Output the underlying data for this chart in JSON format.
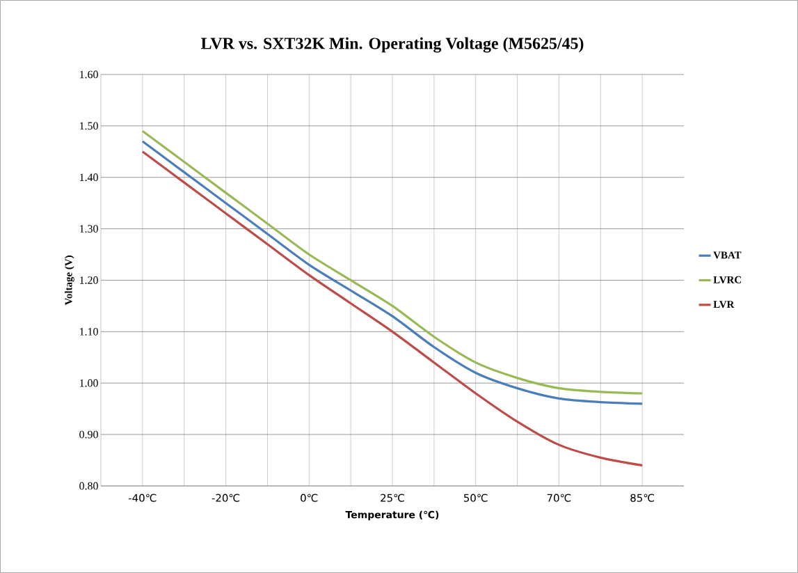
{
  "chart_data": {
    "type": "line",
    "title": "LVR vs. SXT32K Min. Operating Voltage  (M5625/45)",
    "xlabel": "Temperature (℃)",
    "ylabel": "Voltage (V)",
    "categories": [
      "-40℃",
      null,
      "-20℃",
      null,
      "0℃",
      null,
      "25℃",
      null,
      "50℃",
      null,
      "70℃",
      null,
      "85℃"
    ],
    "series": [
      {
        "name": "VBAT",
        "color": "#4a7ebb",
        "values": [
          1.47,
          1.41,
          1.35,
          1.29,
          1.23,
          1.18,
          1.13,
          1.07,
          1.02,
          0.99,
          0.97,
          0.963,
          0.96
        ]
      },
      {
        "name": "LVRC",
        "color": "#98b954",
        "values": [
          1.49,
          1.43,
          1.37,
          1.31,
          1.25,
          1.2,
          1.15,
          1.09,
          1.04,
          1.01,
          0.99,
          0.983,
          0.98
        ]
      },
      {
        "name": "LVR",
        "color": "#be4b48",
        "values": [
          1.45,
          1.39,
          1.33,
          1.27,
          1.21,
          1.155,
          1.1,
          1.04,
          0.98,
          0.925,
          0.88,
          0.855,
          0.84
        ]
      }
    ],
    "ylim": [
      0.8,
      1.6
    ],
    "yticks": [
      {
        "value": 0.8,
        "label": "0.80"
      },
      {
        "value": 0.9,
        "label": "0.90"
      },
      {
        "value": 1.0,
        "label": "1.00"
      },
      {
        "value": 1.1,
        "label": "1.10"
      },
      {
        "value": 1.2,
        "label": "1.20"
      },
      {
        "value": 1.3,
        "label": "1.30"
      },
      {
        "value": 1.4,
        "label": "1.40"
      },
      {
        "value": 1.5,
        "label": "1.50"
      },
      {
        "value": 1.6,
        "label": "1.60"
      }
    ],
    "grid": true,
    "legend": "right",
    "marker": "none",
    "line_style": "solid"
  }
}
